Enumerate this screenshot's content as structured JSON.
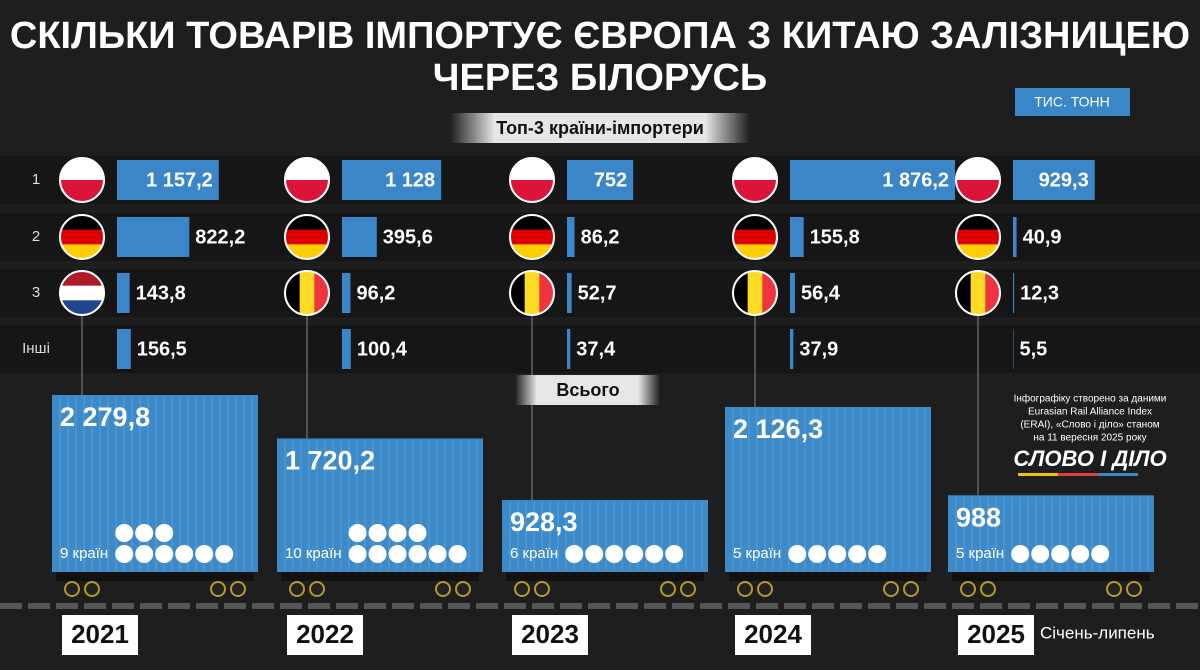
{
  "chart_data": {
    "type": "infographic",
    "title": [
      "СКІЛЬКИ ТОВАРІВ ІМПОРТУЄ ЄВРОПА З КИТАЮ ЗАЛІЗНИЦЕЮ",
      "ЧЕРЕЗ БІЛОРУСЬ"
    ],
    "unit": "ТИС. ТОНН",
    "top_label": "Топ-3 країни-імпортери",
    "total_heading": "Всього",
    "row_labels": [
      "1",
      "2",
      "3",
      "Інші"
    ],
    "source": [
      "Інфографіку створено за даними",
      "Eurasian Rail Alliance Index",
      "(ERAI), «Слово і діло» станом",
      "на 11 вересня 2025 року"
    ],
    "logo": "СЛОВО І ДІЛО",
    "period_note": "Січень-липень",
    "bar_color": "#3a86c8",
    "container_color": "#3d8ac9",
    "years": [
      {
        "year": "2021",
        "values": [
          1157.2,
          822.2,
          143.8,
          156.5
        ],
        "value_labels": [
          "1 157,2",
          "822,2",
          "143,8",
          "156,5"
        ],
        "flags": [
          {
            "colors": [
              "#ffffff",
              "#dc143c"
            ],
            "stripes": "horizontal"
          },
          {
            "colors": [
              "#000000",
              "#dd0000",
              "#ffce00"
            ],
            "stripes": "horizontal"
          },
          {
            "colors": [
              "#ae1c28",
              "#ffffff",
              "#21468b"
            ],
            "stripes": "horizontal"
          }
        ],
        "total": 2279.8,
        "total_label": "2 279,8",
        "countries": 9,
        "countries_label": "9 країн"
      },
      {
        "year": "2022",
        "values": [
          1128,
          395.6,
          96.2,
          100.4
        ],
        "value_labels": [
          "1 128",
          "395,6",
          "96,2",
          "100,4"
        ],
        "flags": [
          {
            "colors": [
              "#ffffff",
              "#dc143c"
            ],
            "stripes": "horizontal"
          },
          {
            "colors": [
              "#000000",
              "#dd0000",
              "#ffce00"
            ],
            "stripes": "horizontal"
          },
          {
            "colors": [
              "#000000",
              "#fdda24",
              "#ef3340"
            ],
            "stripes": "vertical"
          }
        ],
        "total": 1720.2,
        "total_label": "1 720,2",
        "countries": 10,
        "countries_label": "10 країн"
      },
      {
        "year": "2023",
        "values": [
          752,
          86.2,
          52.7,
          37.4
        ],
        "value_labels": [
          "752",
          "86,2",
          "52,7",
          "37,4"
        ],
        "flags": [
          {
            "colors": [
              "#ffffff",
              "#dc143c"
            ],
            "stripes": "horizontal"
          },
          {
            "colors": [
              "#000000",
              "#dd0000",
              "#ffce00"
            ],
            "stripes": "horizontal"
          },
          {
            "colors": [
              "#000000",
              "#fdda24",
              "#ef3340"
            ],
            "stripes": "vertical"
          }
        ],
        "total": 928.3,
        "total_label": "928,3",
        "countries": 6,
        "countries_label": "6 країн"
      },
      {
        "year": "2024",
        "values": [
          1876.2,
          155.8,
          56.4,
          37.9
        ],
        "value_labels": [
          "1 876,2",
          "155,8",
          "56,4",
          "37,9"
        ],
        "flags": [
          {
            "colors": [
              "#ffffff",
              "#dc143c"
            ],
            "stripes": "horizontal"
          },
          {
            "colors": [
              "#000000",
              "#dd0000",
              "#ffce00"
            ],
            "stripes": "horizontal"
          },
          {
            "colors": [
              "#000000",
              "#fdda24",
              "#ef3340"
            ],
            "stripes": "vertical"
          }
        ],
        "total": 2126.3,
        "total_label": "2 126,3",
        "countries": 5,
        "countries_label": "5 країн"
      },
      {
        "year": "2025",
        "values": [
          929.3,
          40.9,
          12.3,
          5.5
        ],
        "value_labels": [
          "929,3",
          "40,9",
          "12,3",
          "5,5"
        ],
        "flags": [
          {
            "colors": [
              "#ffffff",
              "#dc143c"
            ],
            "stripes": "horizontal"
          },
          {
            "colors": [
              "#000000",
              "#dd0000",
              "#ffce00"
            ],
            "stripes": "horizontal"
          },
          {
            "colors": [
              "#000000",
              "#fdda24",
              "#ef3340"
            ],
            "stripes": "vertical"
          }
        ],
        "total": 988,
        "total_label": "988",
        "countries": 5,
        "countries_label": "5 країн"
      }
    ]
  }
}
